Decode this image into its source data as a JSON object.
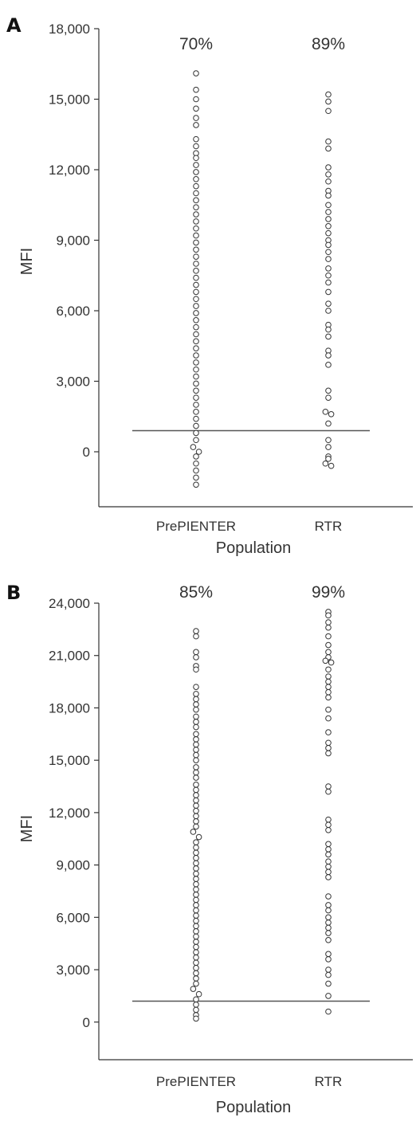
{
  "chart_data": [
    {
      "panel": "A",
      "type": "scatter",
      "ylabel": "MFI",
      "xlabel": "Population",
      "categories": [
        "PrePIENTER",
        "RTR"
      ],
      "yticks": [
        "18,000",
        "15,000",
        "12,000",
        "9,000",
        "6,000",
        "3,000",
        "0"
      ],
      "ylim": [
        -2000,
        18000
      ],
      "threshold": 900,
      "percent_labels": [
        "70%",
        "89%"
      ],
      "series": [
        {
          "category": "PrePIENTER",
          "values": [
            16100,
            15400,
            15000,
            14600,
            14200,
            13900,
            13300,
            13000,
            12700,
            12500,
            12200,
            11900,
            11600,
            11300,
            11000,
            10700,
            10400,
            10100,
            9800,
            9500,
            9200,
            8900,
            8600,
            8300,
            8000,
            7700,
            7400,
            7100,
            6800,
            6500,
            6200,
            5900,
            5600,
            5300,
            5000,
            4700,
            4400,
            4100,
            3800,
            3500,
            3200,
            2900,
            2600,
            2300,
            2000,
            1700,
            1400,
            1100,
            800,
            500,
            200,
            0,
            -200,
            -500,
            -800,
            -1100,
            -1400
          ]
        },
        {
          "category": "RTR",
          "values": [
            15200,
            14900,
            14500,
            13200,
            12900,
            12100,
            11800,
            11500,
            11100,
            10900,
            10500,
            10200,
            9900,
            9600,
            9300,
            9000,
            8800,
            8500,
            8200,
            7800,
            7500,
            7200,
            6800,
            6300,
            6000,
            5400,
            5200,
            4900,
            4300,
            4100,
            3700,
            2600,
            2300,
            1700,
            1600,
            1200,
            500,
            200,
            -200,
            -300,
            -500,
            -600
          ]
        }
      ]
    },
    {
      "panel": "B",
      "type": "scatter",
      "ylabel": "MFI",
      "xlabel": "Population",
      "categories": [
        "PrePIENTER",
        "RTR"
      ],
      "yticks": [
        "24,000",
        "21,000",
        "18,000",
        "15,000",
        "12,000",
        "9,000",
        "6,000",
        "3,000",
        "0"
      ],
      "ylim": [
        -1700,
        24000
      ],
      "threshold": 1200,
      "percent_labels": [
        "85%",
        "99%"
      ],
      "series": [
        {
          "category": "PrePIENTER",
          "values": [
            22400,
            22100,
            21200,
            20900,
            20400,
            20200,
            19200,
            18800,
            18500,
            18200,
            17900,
            17500,
            17200,
            16900,
            16500,
            16200,
            15900,
            15600,
            15300,
            15000,
            14600,
            14300,
            14000,
            13600,
            13300,
            13000,
            12700,
            12400,
            12100,
            11800,
            11500,
            11200,
            10900,
            10600,
            10300,
            10000,
            9700,
            9400,
            9100,
            8800,
            8500,
            8200,
            7900,
            7600,
            7300,
            7000,
            6700,
            6400,
            6100,
            5800,
            5500,
            5200,
            4900,
            4600,
            4300,
            4000,
            3700,
            3400,
            3100,
            2800,
            2500,
            2200,
            1900,
            1600,
            1300,
            1000,
            700,
            400,
            200
          ]
        },
        {
          "category": "RTR",
          "values": [
            23500,
            23300,
            22900,
            22600,
            22100,
            21600,
            21200,
            20900,
            20700,
            20600,
            20200,
            19800,
            19500,
            19200,
            18900,
            18600,
            17900,
            17400,
            16600,
            16000,
            15700,
            15400,
            13500,
            13200,
            11600,
            11300,
            11000,
            10200,
            9900,
            9600,
            9200,
            8900,
            8600,
            8300,
            7200,
            6700,
            6400,
            6000,
            5700,
            5400,
            5100,
            4700,
            3900,
            3600,
            3000,
            2700,
            2200,
            1500,
            600
          ]
        }
      ]
    }
  ]
}
